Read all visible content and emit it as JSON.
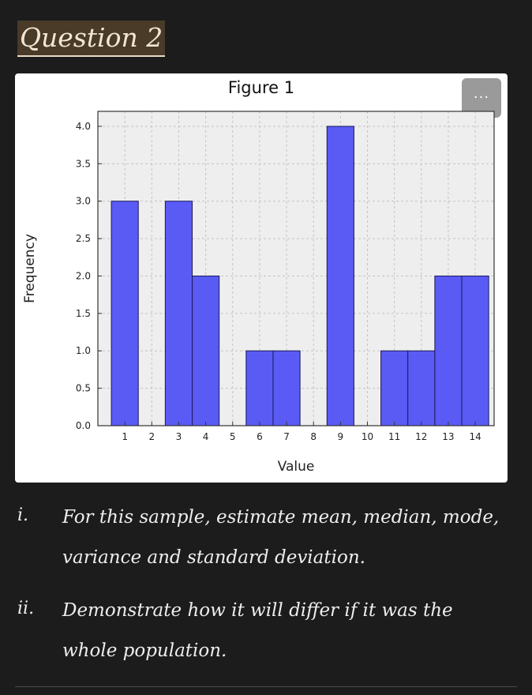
{
  "heading": "Question 2",
  "figure": {
    "title": "Figure 1",
    "menu_label": "..."
  },
  "chart_data": {
    "type": "bar",
    "x": [
      1,
      2,
      3,
      4,
      5,
      6,
      7,
      8,
      9,
      10,
      11,
      12,
      13,
      14
    ],
    "values": [
      3,
      0,
      3,
      2,
      0,
      1,
      1,
      0,
      4,
      0,
      1,
      1,
      2,
      2
    ],
    "xlabel": "Value",
    "ylabel": "Frequency",
    "xticks": [
      "1",
      "2",
      "3",
      "4",
      "5",
      "6",
      "7",
      "8",
      "9",
      "10",
      "11",
      "12",
      "13",
      "14"
    ],
    "yticks": [
      "0.0",
      "0.5",
      "1.0",
      "1.5",
      "2.0",
      "2.5",
      "3.0",
      "3.5",
      "4.0"
    ],
    "ylim": [
      0,
      4.2
    ],
    "xlim": [
      0.0,
      14.7
    ],
    "grid": true,
    "colors": {
      "bar": "#5a5af5",
      "edge": "#1a1a5a",
      "plot_bg": "#eeeeee",
      "grid": "#c4c4c4"
    }
  },
  "questions": [
    {
      "marker": "i.",
      "text": "For this sample, estimate mean, median, mode, variance and standard deviation."
    },
    {
      "marker": "ii.",
      "text": "Demonstrate how it will differ if it was the whole population."
    }
  ]
}
